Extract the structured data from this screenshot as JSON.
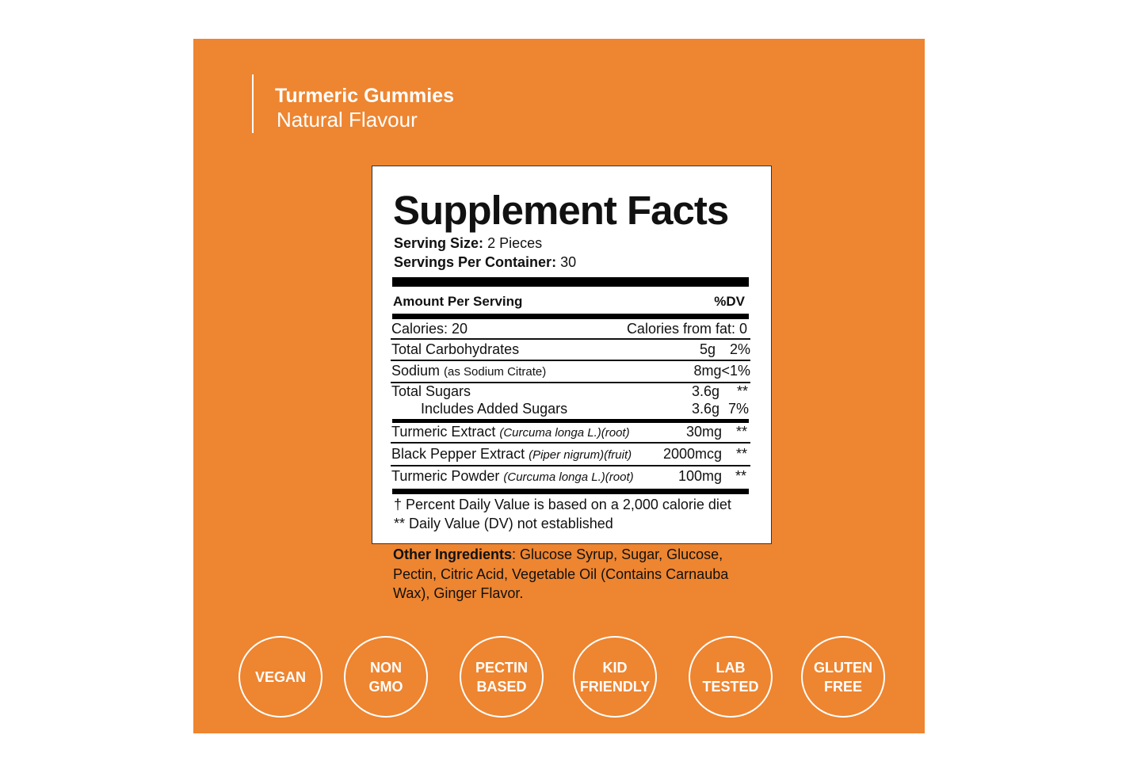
{
  "colors": {
    "background": "#EE8530",
    "label": "#FFFFFF",
    "text": "#111111"
  },
  "product": {
    "title": "Turmeric Gummies",
    "subtitle": "Natural Flavour"
  },
  "facts": {
    "title": "Supplement Facts",
    "serving_size_label": "Serving Size:",
    "serving_size": "2 Pieces",
    "servings_label": "Servings Per Container:",
    "servings": "30",
    "amount_header": "Amount Per Serving",
    "dv_header": "%DV",
    "calories": "Calories: 20",
    "calories_fat": "Calories from fat: 0",
    "rows": [
      {
        "name": "Total Carbohydrates",
        "note": "",
        "amount": "5g",
        "dv": "2%"
      },
      {
        "name": "Sodium",
        "note": "(as Sodium Citrate)",
        "amount": "8mg",
        "dv": "<1%"
      },
      {
        "name": "Total Sugars",
        "note": "",
        "amount": "3.6g",
        "dv": "**"
      },
      {
        "name": "Includes Added Sugars",
        "note": "",
        "amount": "3.6g",
        "dv": "7%"
      },
      {
        "name": "Turmeric Extract",
        "note": "(Curcuma longa L.)(root)",
        "amount": "30mg",
        "dv": "**"
      },
      {
        "name": "Black Pepper Extract",
        "note": "(Piper nigrum)(fruit)",
        "amount": "2000mcg",
        "dv": "**"
      },
      {
        "name": "Turmeric Powder",
        "note": "(Curcuma longa L.)(root)",
        "amount": "100mg",
        "dv": "**"
      }
    ],
    "footnote1": "† Percent Daily Value is based on a 2,000 calorie diet",
    "footnote2": "** Daily Value (DV) not established"
  },
  "other_ingredients": {
    "label": "Other Ingredients",
    "text": ": Glucose Syrup, Sugar, Glucose, Pectin, Citric Acid, Vegetable Oil (Contains Carnauba Wax), Ginger Flavor."
  },
  "badges": [
    "VEGAN",
    "NON\nGMO",
    "PECTIN\nBASED",
    "KID\nFRIENDLY",
    "LAB\nTESTED",
    "GLUTEN\nFREE"
  ]
}
